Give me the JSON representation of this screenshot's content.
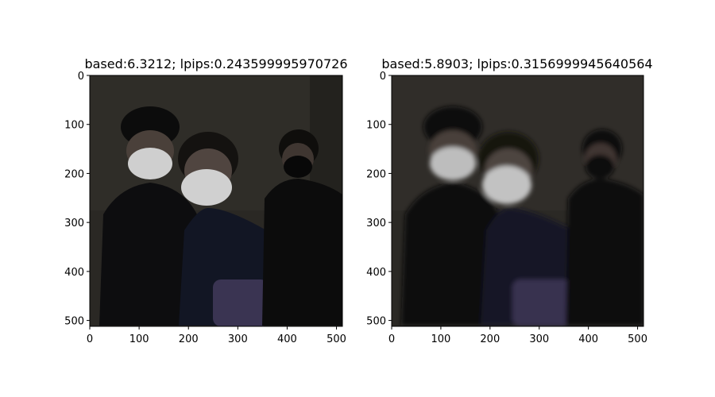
{
  "chart_data": [
    {
      "type": "image",
      "title": "based:6.3212; lpips:0.243599995970726",
      "xlim": [
        0,
        512
      ],
      "ylim": [
        512,
        0
      ],
      "xticks": [
        "0",
        "100",
        "200",
        "300",
        "400",
        "500"
      ],
      "yticks": [
        "0",
        "100",
        "200",
        "300",
        "400",
        "500"
      ],
      "image": {
        "description_tag": "dark-photo-three-people-masks-sharp",
        "background_color": "#2a2824",
        "mask_color": "#cfcfcf",
        "clothing_color": "#0d0d0f"
      }
    },
    {
      "type": "image",
      "title": "based:5.8903; lpips:0.3156999945640564",
      "xlim": [
        0,
        512
      ],
      "ylim": [
        512,
        0
      ],
      "xticks": [
        "0",
        "100",
        "200",
        "300",
        "400",
        "500"
      ],
      "yticks": [
        "0",
        "100",
        "200",
        "300",
        "400",
        "500"
      ],
      "image": {
        "description_tag": "dark-photo-three-people-masks-blurred",
        "background_color": "#2b2925",
        "mask_color": "#bdbdbd",
        "clothing_color": "#0e0e10"
      }
    }
  ]
}
